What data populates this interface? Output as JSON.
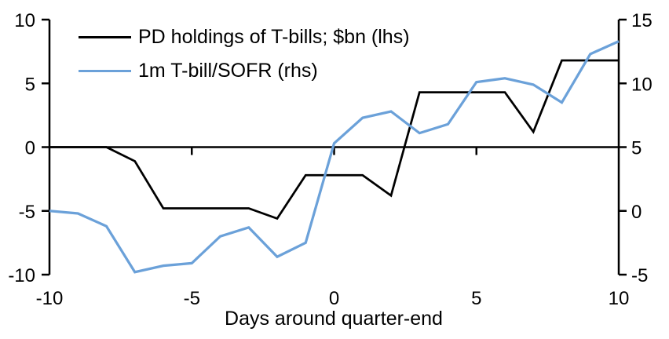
{
  "chart_data": {
    "type": "line",
    "title": "",
    "xlabel": "Days around quarter-end",
    "ylabel_left": "",
    "ylabel_right": "",
    "grid": false,
    "legend_position": "top-left",
    "background_color": "#ffffff",
    "axis_color": "#000000",
    "x": [
      -10,
      -9,
      -8,
      -7,
      -6,
      -5,
      -4,
      -3,
      -2,
      -1,
      0,
      1,
      2,
      3,
      4,
      5,
      6,
      7,
      8,
      9,
      10
    ],
    "x_ticks": [
      -10,
      -5,
      0,
      5,
      10
    ],
    "left_axis": {
      "min": -10,
      "max": 10,
      "ticks": [
        10,
        5,
        0,
        -5,
        -10
      ]
    },
    "right_axis": {
      "min": -5,
      "max": 15,
      "ticks": [
        15,
        10,
        5,
        0,
        -5
      ]
    },
    "series": [
      {
        "name": "PD holdings of T-bills; $bn (lhs)",
        "axis": "left",
        "color": "#000000",
        "stroke_width": 2.75,
        "values": [
          0,
          0,
          0,
          -1.1,
          -4.8,
          -4.8,
          -4.8,
          -4.8,
          -5.6,
          -2.2,
          -2.2,
          -2.2,
          -3.8,
          4.3,
          4.3,
          4.3,
          4.3,
          1.2,
          6.8,
          6.8,
          6.8
        ]
      },
      {
        "name": "1m T-bill/SOFR (rhs)",
        "axis": "right",
        "color": "#6BA1D9",
        "stroke_width": 3.25,
        "values": [
          0,
          -0.2,
          -1.2,
          -4.8,
          -4.3,
          -4.1,
          -2.0,
          -1.3,
          -3.6,
          -2.5,
          5.3,
          7.3,
          7.8,
          6.1,
          6.8,
          10.1,
          10.4,
          9.9,
          8.5,
          12.3,
          13.3
        ]
      }
    ]
  }
}
